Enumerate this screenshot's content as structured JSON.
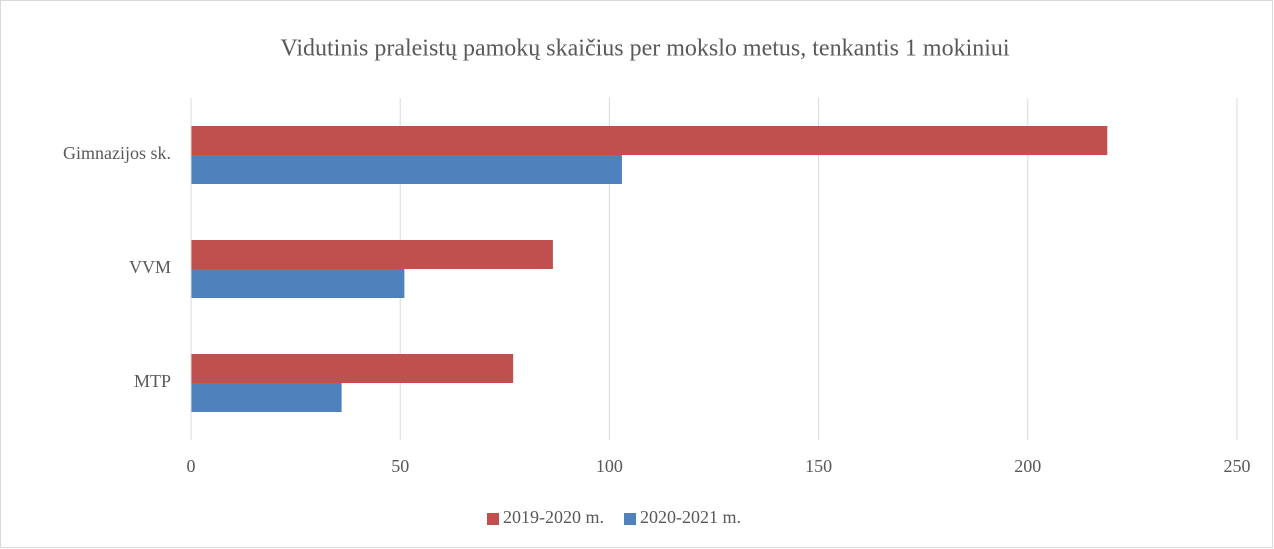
{
  "chart_data": {
    "type": "bar",
    "orientation": "horizontal",
    "title": "Vidutinis praleistų pamokų skaičius per mokslo metus, tenkantis 1 mokiniui",
    "categories": [
      "Gimnazijos sk.",
      "VVM",
      "MTP"
    ],
    "series": [
      {
        "name": "2019-2020 m.",
        "color": "#c0504d",
        "values": [
          219,
          86.5,
          77
        ]
      },
      {
        "name": "2020-2021 m.",
        "color": "#4f81bd",
        "values": [
          103,
          51,
          36
        ]
      }
    ],
    "xlim": [
      0,
      250
    ],
    "xticks": [
      0,
      50,
      100,
      150,
      200,
      250
    ],
    "grid": true,
    "legend": "bottom"
  }
}
